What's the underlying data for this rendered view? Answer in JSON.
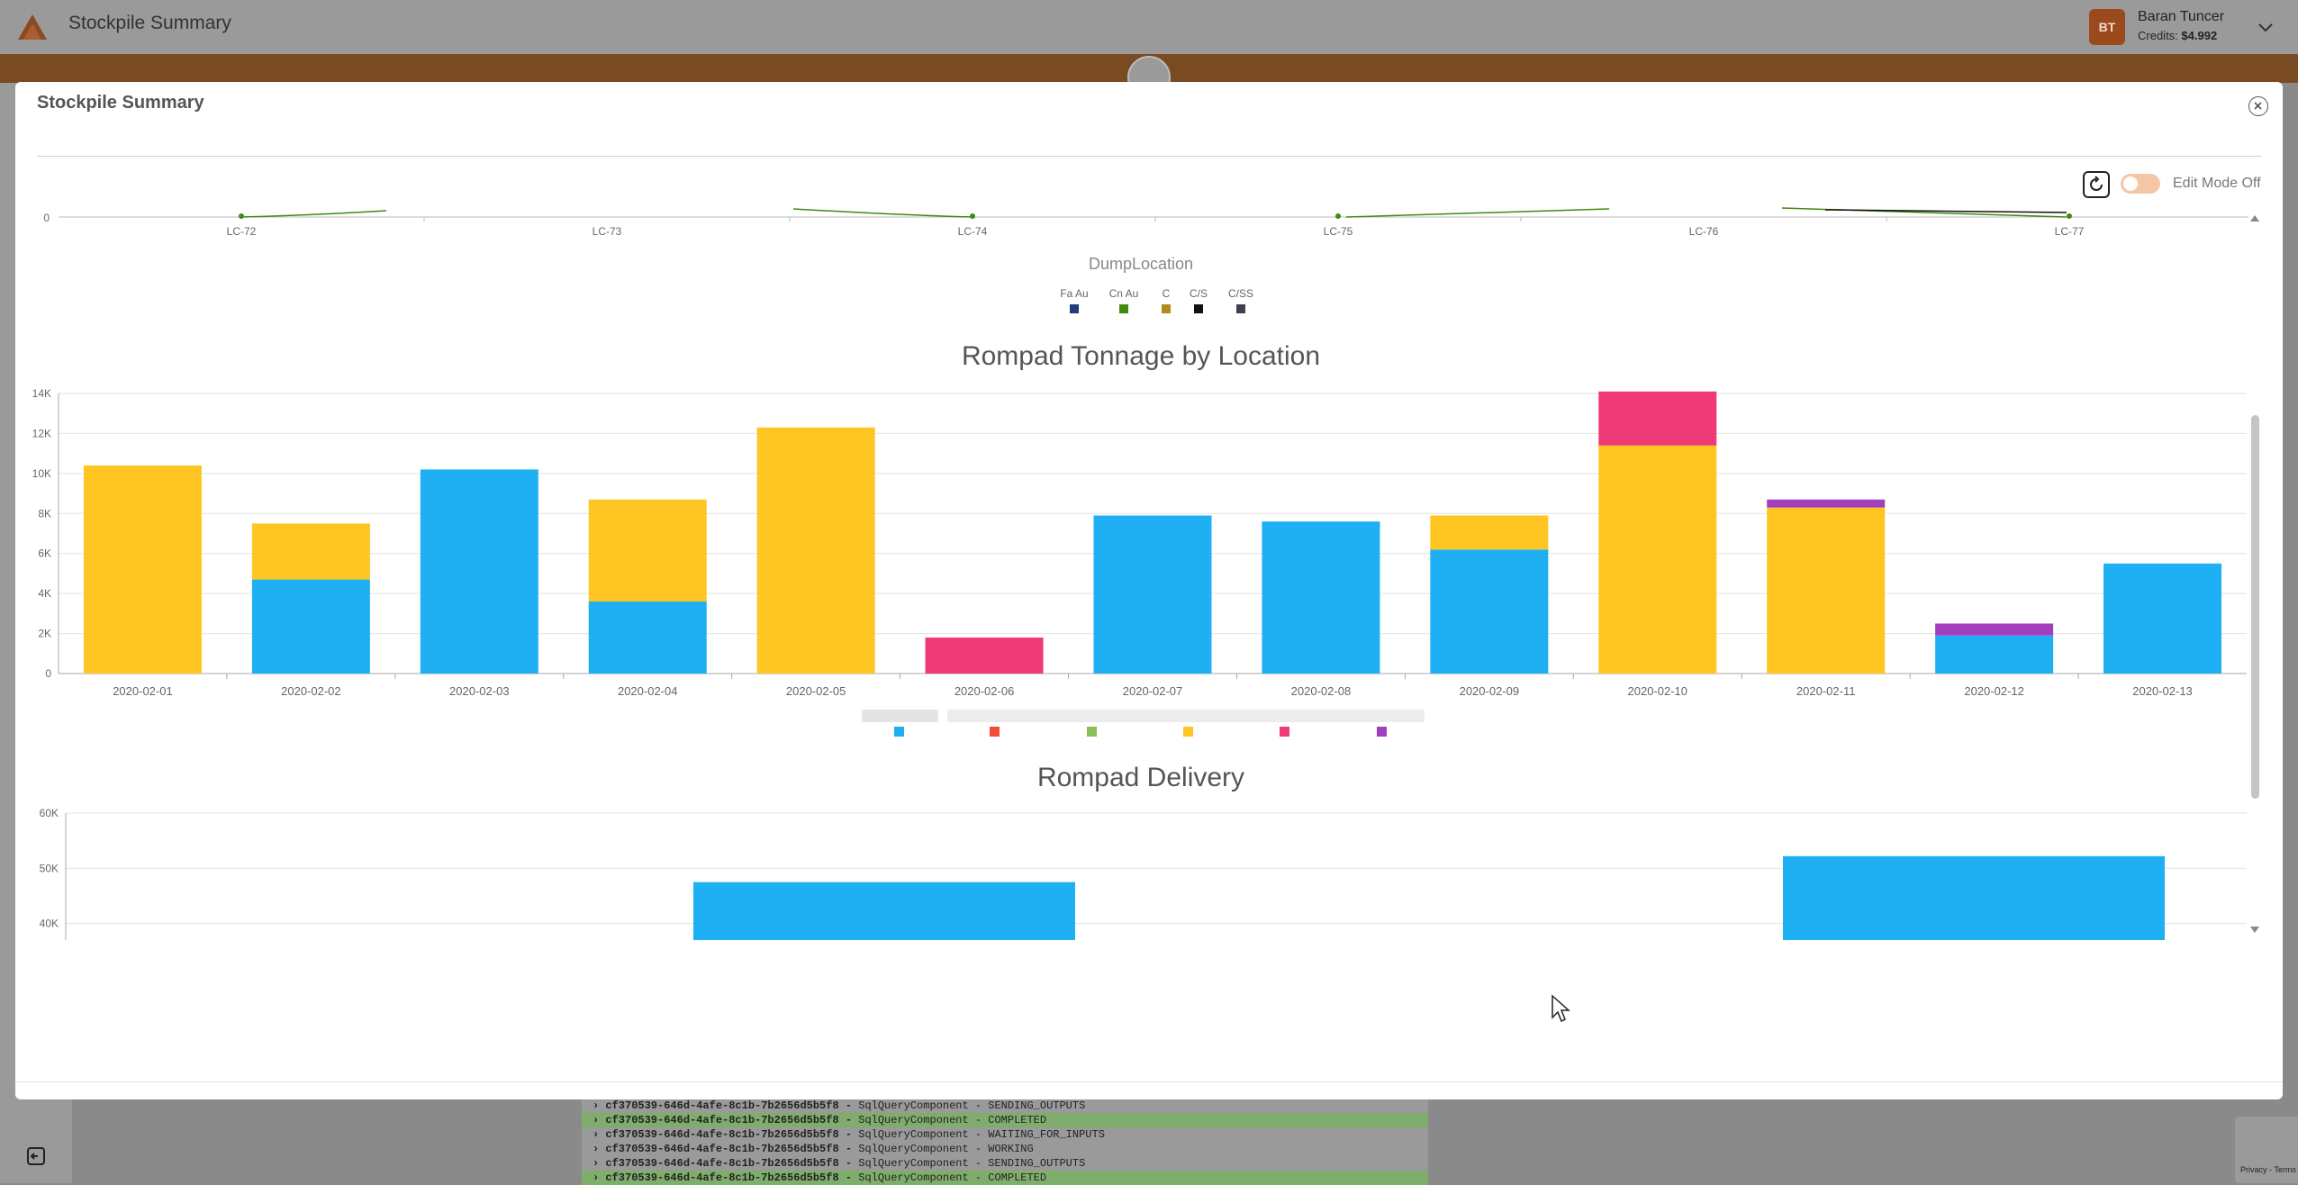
{
  "app": {
    "title": "Stockpile Summary",
    "user": {
      "initials": "BT",
      "name": "Baran Tuncer",
      "credits_label": "Credits:",
      "credits_value": "$4.992"
    }
  },
  "modal": {
    "title": "Stockpile Summary",
    "edit_mode_label": "Edit Mode Off"
  },
  "colors": {
    "accent": "#c86b2e",
    "blue": "#1eb0f2",
    "yellow": "#fec523",
    "red": "#f24b37",
    "green": "#88c057",
    "pink": "#ee3a76",
    "purple": "#a23fbd"
  },
  "chart_data": [
    {
      "type": "line",
      "title": "",
      "x_title": "DumpLocation",
      "categories": [
        "LC-72",
        "LC-73",
        "LC-74",
        "LC-75",
        "LC-76",
        "LC-77"
      ],
      "ytick_visible": "0",
      "legend": [
        {
          "name": "Fa Au",
          "color": "#1f3e7a"
        },
        {
          "name": "Cn Au",
          "color": "#3f8a12"
        },
        {
          "name": "C",
          "color": "#b3891f"
        },
        {
          "name": "C/S",
          "color": "#111111"
        },
        {
          "name": "C/SS",
          "color": "#3f4150"
        }
      ]
    },
    {
      "type": "bar",
      "stacked": true,
      "title": "Rompad Tonnage by Location",
      "categories": [
        "2020-02-01",
        "2020-02-02",
        "2020-02-03",
        "2020-02-04",
        "2020-02-05",
        "2020-02-06",
        "2020-02-07",
        "2020-02-08",
        "2020-02-09",
        "2020-02-10",
        "2020-02-11",
        "2020-02-12",
        "2020-02-13"
      ],
      "ylim": [
        0,
        14000
      ],
      "yticks": [
        "0",
        "2K",
        "4K",
        "6K",
        "8K",
        "10K",
        "12K",
        "14K"
      ],
      "grid": true,
      "legend_placement": "bottom",
      "series": [
        {
          "color": "#1eb0f2",
          "values": [
            0,
            4700,
            10200,
            3600,
            0,
            0,
            7900,
            7600,
            6200,
            0,
            0,
            1900,
            5500
          ]
        },
        {
          "color": "#f24b37",
          "values": [
            0,
            0,
            0,
            0,
            0,
            0,
            0,
            0,
            0,
            0,
            0,
            0,
            0
          ]
        },
        {
          "color": "#88c057",
          "values": [
            0,
            0,
            0,
            0,
            0,
            0,
            0,
            0,
            0,
            0,
            0,
            0,
            0
          ]
        },
        {
          "color": "#fec523",
          "values": [
            10400,
            2800,
            0,
            5100,
            12300,
            0,
            0,
            0,
            1700,
            11400,
            8300,
            0,
            0
          ]
        },
        {
          "color": "#ee3a76",
          "values": [
            0,
            0,
            0,
            0,
            0,
            1800,
            0,
            0,
            0,
            2700,
            0,
            0,
            0
          ]
        },
        {
          "color": "#a23fbd",
          "values": [
            0,
            0,
            0,
            0,
            0,
            0,
            0,
            0,
            0,
            0,
            400,
            600,
            0
          ]
        }
      ]
    },
    {
      "type": "bar",
      "title": "Rompad Delivery",
      "yticks": [
        "40K",
        "50K",
        "60K"
      ],
      "ylim_visible": [
        37000,
        60000
      ],
      "grid": true,
      "bars": [
        {
          "color": "#1eb0f2",
          "value": 47500
        },
        {
          "color": "#1eb0f2",
          "value": 52200
        }
      ]
    }
  ],
  "log": [
    {
      "id": "› cf370539-646d-4afe-8c1b-7b2656d5b5f8 -",
      "msg": "SqlQueryComponent - SENDING_OUTPUTS",
      "done": false
    },
    {
      "id": "› cf370539-646d-4afe-8c1b-7b2656d5b5f8 -",
      "msg": "SqlQueryComponent - COMPLETED",
      "done": true
    },
    {
      "id": "› cf370539-646d-4afe-8c1b-7b2656d5b5f8 -",
      "msg": "SqlQueryComponent - WAITING_FOR_INPUTS",
      "done": false
    },
    {
      "id": "› cf370539-646d-4afe-8c1b-7b2656d5b5f8 -",
      "msg": "SqlQueryComponent - WORKING",
      "done": false
    },
    {
      "id": "› cf370539-646d-4afe-8c1b-7b2656d5b5f8 -",
      "msg": "SqlQueryComponent - SENDING_OUTPUTS",
      "done": false
    },
    {
      "id": "› cf370539-646d-4afe-8c1b-7b2656d5b5f8 -",
      "msg": "SqlQueryComponent - COMPLETED",
      "done": true
    }
  ],
  "recaptcha": {
    "text": "Privacy - Terms"
  }
}
